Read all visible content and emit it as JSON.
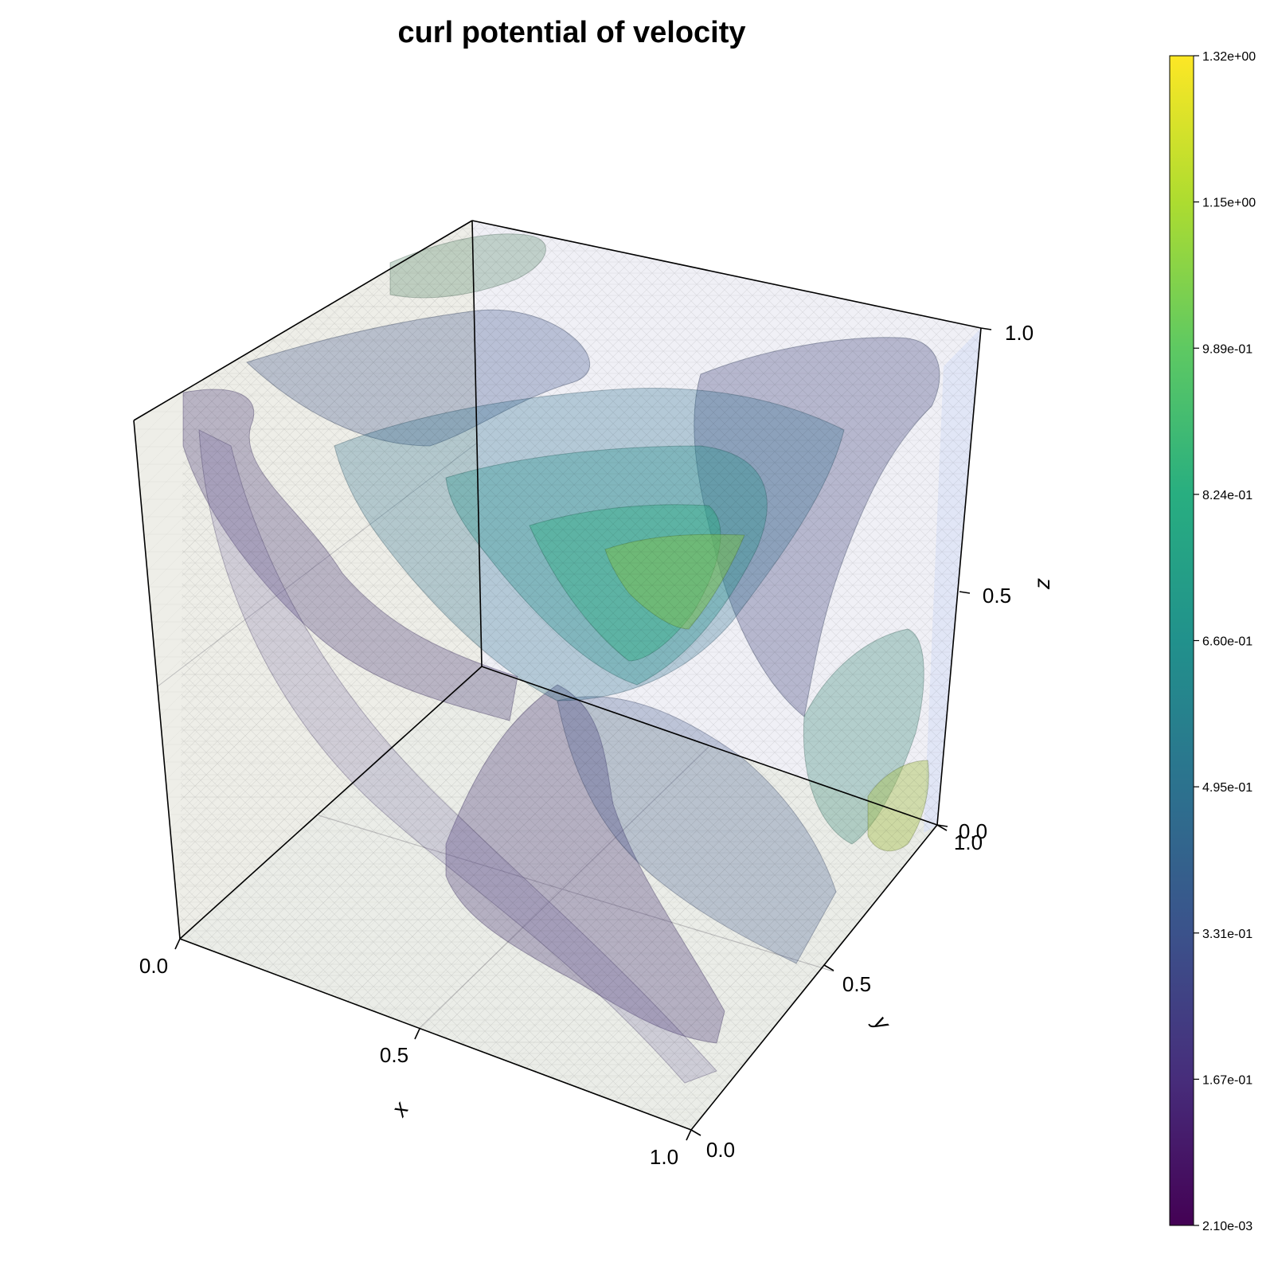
{
  "chart_data": {
    "type": "3d-isosurface",
    "title": "curl potential of velocity",
    "axes": {
      "x": {
        "label": "x",
        "ticks": [
          "0.0",
          "0.5",
          "1.0"
        ],
        "range": [
          0,
          1
        ]
      },
      "y": {
        "label": "y",
        "ticks": [
          "0.0",
          "0.5",
          "1.0"
        ],
        "range": [
          0,
          1
        ]
      },
      "z": {
        "label": "z",
        "ticks": [
          "0.0",
          "0.5",
          "1.0"
        ],
        "range": [
          0,
          1
        ]
      }
    },
    "colorbar": {
      "colormap": "viridis",
      "range": [
        0.0021,
        1.32
      ],
      "ticks": [
        "2.10e-03",
        "1.67e-01",
        "3.31e-01",
        "4.95e-01",
        "6.60e-01",
        "8.24e-01",
        "9.89e-01",
        "1.15e+00",
        "1.32e+00"
      ]
    },
    "isosurface_levels": [
      0.167,
      0.331,
      0.495,
      0.66,
      0.824,
      0.989
    ]
  }
}
